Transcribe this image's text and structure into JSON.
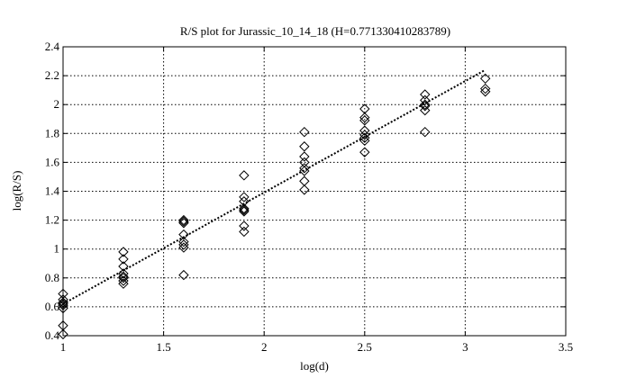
{
  "chart_data": {
    "type": "scatter",
    "title": "R/S plot for Jurassic_10_14_18 (H=0.771330410283789)",
    "xlabel": "log(d)",
    "ylabel": "log(R/S)",
    "xlim": [
      1,
      3.5
    ],
    "ylim": [
      0.4,
      2.4
    ],
    "xticks": [
      "1",
      "1.5",
      "2",
      "2.5",
      "3",
      "3.5"
    ],
    "yticks": [
      "0.4",
      "0.6",
      "0.8",
      "1",
      "1.2",
      "1.4",
      "1.6",
      "1.8",
      "2",
      "2.2",
      "2.4"
    ],
    "grid": true,
    "marker": "diamond",
    "points": [
      {
        "x": 1.0,
        "y": 0.41
      },
      {
        "x": 1.0,
        "y": 0.47
      },
      {
        "x": 1.0,
        "y": 0.59
      },
      {
        "x": 1.0,
        "y": 0.61
      },
      {
        "x": 1.0,
        "y": 0.62
      },
      {
        "x": 1.0,
        "y": 0.63
      },
      {
        "x": 1.0,
        "y": 0.65
      },
      {
        "x": 1.0,
        "y": 0.69
      },
      {
        "x": 1.3,
        "y": 0.76
      },
      {
        "x": 1.3,
        "y": 0.78
      },
      {
        "x": 1.3,
        "y": 0.8
      },
      {
        "x": 1.3,
        "y": 0.81
      },
      {
        "x": 1.3,
        "y": 0.83
      },
      {
        "x": 1.3,
        "y": 0.88
      },
      {
        "x": 1.3,
        "y": 0.93
      },
      {
        "x": 1.3,
        "y": 0.98
      },
      {
        "x": 1.6,
        "y": 0.82
      },
      {
        "x": 1.6,
        "y": 1.01
      },
      {
        "x": 1.6,
        "y": 1.03
      },
      {
        "x": 1.6,
        "y": 1.05
      },
      {
        "x": 1.6,
        "y": 1.1
      },
      {
        "x": 1.6,
        "y": 1.18
      },
      {
        "x": 1.6,
        "y": 1.19
      },
      {
        "x": 1.6,
        "y": 1.2
      },
      {
        "x": 1.9,
        "y": 1.12
      },
      {
        "x": 1.9,
        "y": 1.16
      },
      {
        "x": 1.9,
        "y": 1.26
      },
      {
        "x": 1.9,
        "y": 1.27
      },
      {
        "x": 1.9,
        "y": 1.28
      },
      {
        "x": 1.9,
        "y": 1.33
      },
      {
        "x": 1.9,
        "y": 1.36
      },
      {
        "x": 1.9,
        "y": 1.51
      },
      {
        "x": 2.2,
        "y": 1.41
      },
      {
        "x": 2.2,
        "y": 1.47
      },
      {
        "x": 2.2,
        "y": 1.54
      },
      {
        "x": 2.2,
        "y": 1.56
      },
      {
        "x": 2.2,
        "y": 1.6
      },
      {
        "x": 2.2,
        "y": 1.64
      },
      {
        "x": 2.2,
        "y": 1.71
      },
      {
        "x": 2.2,
        "y": 1.81
      },
      {
        "x": 2.5,
        "y": 1.67
      },
      {
        "x": 2.5,
        "y": 1.75
      },
      {
        "x": 2.5,
        "y": 1.77
      },
      {
        "x": 2.5,
        "y": 1.79
      },
      {
        "x": 2.5,
        "y": 1.82
      },
      {
        "x": 2.5,
        "y": 1.89
      },
      {
        "x": 2.5,
        "y": 1.91
      },
      {
        "x": 2.5,
        "y": 1.97
      },
      {
        "x": 2.8,
        "y": 1.81
      },
      {
        "x": 2.8,
        "y": 1.96
      },
      {
        "x": 2.8,
        "y": 1.99
      },
      {
        "x": 2.8,
        "y": 2.0
      },
      {
        "x": 2.8,
        "y": 2.03
      },
      {
        "x": 2.8,
        "y": 2.07
      },
      {
        "x": 3.1,
        "y": 2.09
      },
      {
        "x": 3.1,
        "y": 2.11
      },
      {
        "x": 3.1,
        "y": 2.18
      }
    ],
    "fit_line": {
      "x": [
        1.0,
        3.1
      ],
      "y": [
        0.62,
        2.24
      ],
      "style": "dotted"
    }
  }
}
